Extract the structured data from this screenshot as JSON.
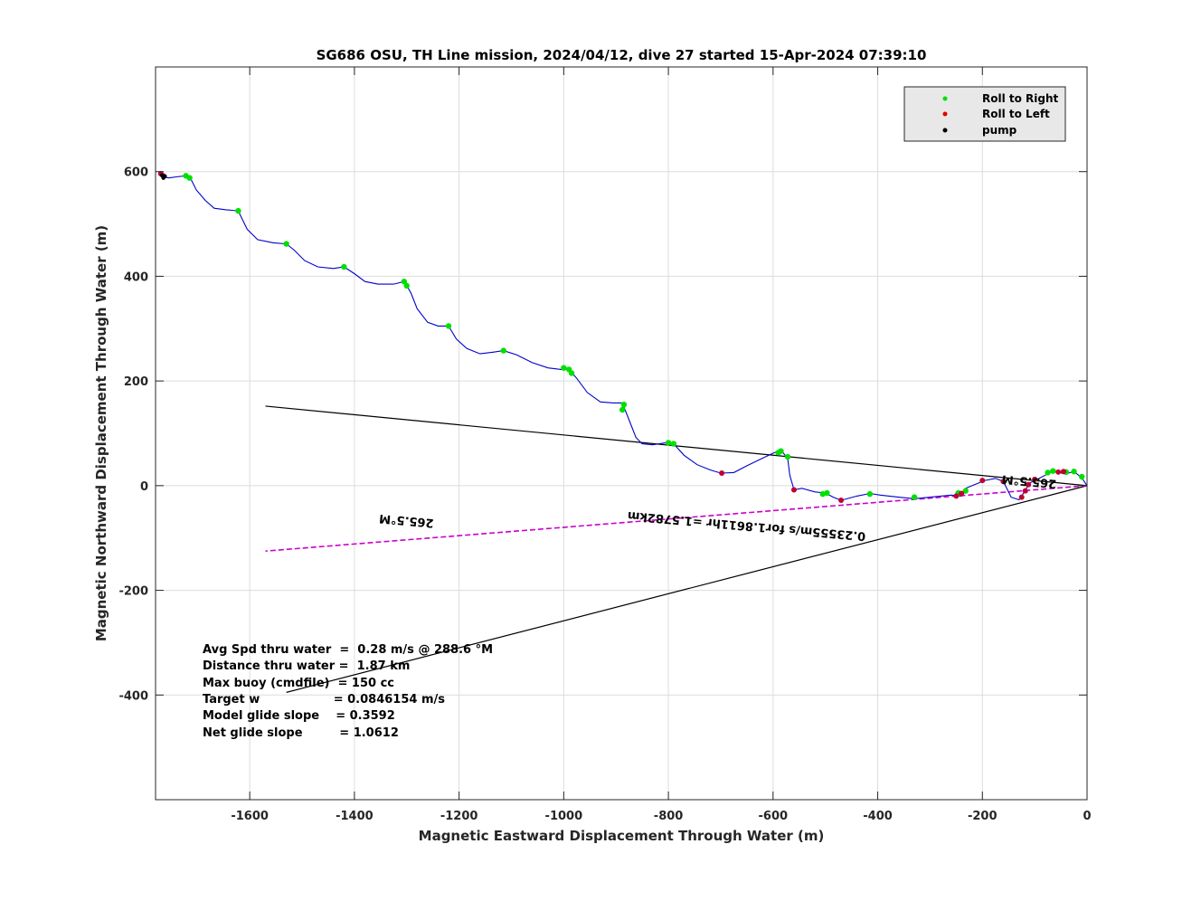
{
  "chart_data": {
    "type": "line",
    "title": "SG686 OSU, TH Line mission, 2024/04/12, dive 27 started 15-Apr-2024 07:39:10",
    "xlabel": "Magnetic Eastward Displacement Through Water (m)",
    "ylabel": "Magnetic Northward Displacement Through Water (m)",
    "xlim": [
      -1780,
      0
    ],
    "ylim": [
      -600,
      800
    ],
    "xticks": [
      -1600,
      -1400,
      -1200,
      -1000,
      -800,
      -600,
      -400,
      -200,
      0
    ],
    "yticks": [
      -400,
      -200,
      0,
      200,
      400,
      600
    ],
    "grid": true,
    "legend": {
      "placement": "top-right",
      "entries": [
        {
          "label": "Roll to Right",
          "color": "#00e000"
        },
        {
          "label": "Roll to Left",
          "color": "#e00000"
        },
        {
          "label": "pump",
          "color": "#000000"
        }
      ]
    },
    "track": {
      "color": "#0000cc",
      "points": [
        [
          0,
          0
        ],
        [
          -10,
          15
        ],
        [
          -25,
          27
        ],
        [
          -42,
          22
        ],
        [
          -55,
          26
        ],
        [
          -65,
          28
        ],
        [
          -80,
          20
        ],
        [
          -95,
          12
        ],
        [
          -110,
          5
        ],
        [
          -120,
          -12
        ],
        [
          -130,
          -27
        ],
        [
          -145,
          -22
        ],
        [
          -160,
          8
        ],
        [
          -175,
          14
        ],
        [
          -195,
          10
        ],
        [
          -215,
          2
        ],
        [
          -232,
          -5
        ],
        [
          -240,
          -20
        ],
        [
          -260,
          -18
        ],
        [
          -300,
          -22
        ],
        [
          -330,
          -25
        ],
        [
          -360,
          -22
        ],
        [
          -395,
          -18
        ],
        [
          -415,
          -15
        ],
        [
          -440,
          -20
        ],
        [
          -470,
          -28
        ],
        [
          -485,
          -22
        ],
        [
          -500,
          -14
        ],
        [
          -520,
          -12
        ],
        [
          -545,
          -5
        ],
        [
          -560,
          -8
        ],
        [
          -568,
          20
        ],
        [
          -572,
          52
        ],
        [
          -585,
          68
        ],
        [
          -600,
          62
        ],
        [
          -625,
          50
        ],
        [
          -650,
          38
        ],
        [
          -675,
          25
        ],
        [
          -700,
          24
        ],
        [
          -720,
          30
        ],
        [
          -745,
          40
        ],
        [
          -770,
          58
        ],
        [
          -790,
          80
        ],
        [
          -805,
          82
        ],
        [
          -830,
          78
        ],
        [
          -850,
          80
        ],
        [
          -862,
          92
        ],
        [
          -875,
          125
        ],
        [
          -888,
          158
        ],
        [
          -905,
          158
        ],
        [
          -930,
          160
        ],
        [
          -955,
          178
        ],
        [
          -975,
          205
        ],
        [
          -990,
          222
        ],
        [
          -1005,
          222
        ],
        [
          -1030,
          225
        ],
        [
          -1060,
          235
        ],
        [
          -1090,
          250
        ],
        [
          -1115,
          258
        ],
        [
          -1135,
          255
        ],
        [
          -1160,
          252
        ],
        [
          -1185,
          262
        ],
        [
          -1205,
          280
        ],
        [
          -1220,
          305
        ],
        [
          -1240,
          305
        ],
        [
          -1260,
          312
        ],
        [
          -1280,
          338
        ],
        [
          -1292,
          368
        ],
        [
          -1300,
          382
        ],
        [
          -1305,
          390
        ],
        [
          -1325,
          385
        ],
        [
          -1355,
          385
        ],
        [
          -1380,
          390
        ],
        [
          -1400,
          405
        ],
        [
          -1420,
          418
        ],
        [
          -1440,
          415
        ],
        [
          -1470,
          418
        ],
        [
          -1495,
          430
        ],
        [
          -1515,
          450
        ],
        [
          -1530,
          462
        ],
        [
          -1555,
          464
        ],
        [
          -1585,
          470
        ],
        [
          -1605,
          490
        ],
        [
          -1622,
          525
        ],
        [
          -1645,
          527
        ],
        [
          -1668,
          530
        ],
        [
          -1685,
          545
        ],
        [
          -1702,
          565
        ],
        [
          -1712,
          585
        ],
        [
          -1722,
          592
        ],
        [
          -1740,
          590
        ],
        [
          -1755,
          588
        ],
        [
          -1765,
          590
        ]
      ]
    },
    "roll_right_points": [
      [
        -10,
        17
      ],
      [
        -25,
        27
      ],
      [
        -40,
        26
      ],
      [
        -65,
        28
      ],
      [
        -75,
        25
      ],
      [
        -232,
        -10
      ],
      [
        -246,
        -14
      ],
      [
        -330,
        -22
      ],
      [
        -415,
        -16
      ],
      [
        -497,
        -14
      ],
      [
        -505,
        -16
      ],
      [
        -572,
        55
      ],
      [
        -585,
        66
      ],
      [
        -590,
        63
      ],
      [
        -800,
        82
      ],
      [
        -790,
        80
      ],
      [
        -885,
        155
      ],
      [
        -888,
        145
      ],
      [
        -990,
        222
      ],
      [
        -985,
        215
      ],
      [
        -1000,
        225
      ],
      [
        -1115,
        258
      ],
      [
        -1220,
        305
      ],
      [
        -1300,
        382
      ],
      [
        -1305,
        390
      ],
      [
        -1420,
        418
      ],
      [
        -1530,
        462
      ],
      [
        -1622,
        525
      ],
      [
        -1722,
        592
      ],
      [
        -1715,
        588
      ]
    ],
    "roll_left_points": [
      [
        -45,
        27
      ],
      [
        -55,
        26
      ],
      [
        -100,
        12
      ],
      [
        -112,
        2
      ],
      [
        -118,
        -10
      ],
      [
        -125,
        -22
      ],
      [
        -160,
        8
      ],
      [
        -200,
        10
      ],
      [
        -240,
        -15
      ],
      [
        -250,
        -20
      ],
      [
        -470,
        -28
      ],
      [
        -560,
        -8
      ],
      [
        -698,
        24
      ],
      [
        -1765,
        592
      ],
      [
        -1770,
        596
      ]
    ],
    "pump_points": [
      [
        -1765,
        588
      ],
      [
        -1768,
        593
      ],
      [
        -1762,
        591
      ]
    ],
    "lines": [
      {
        "name": "black-upper-line",
        "color": "#000000",
        "from": [
          0,
          0
        ],
        "to": [
          -1570,
          152
        ]
      },
      {
        "name": "black-lower-line",
        "color": "#000000",
        "from": [
          0,
          0
        ],
        "to": [
          -1530,
          -395
        ]
      },
      {
        "name": "magenta-heading-line",
        "color": "#cc00cc",
        "from": [
          0,
          0
        ],
        "to": [
          -1570,
          -125
        ]
      }
    ],
    "annotations": [
      {
        "text": "265.5°M",
        "x": -110,
        "y": 15,
        "rotate": 185
      },
      {
        "text": "265.5°M",
        "x": -1300,
        "y": -60,
        "rotate": 185
      },
      {
        "text": "0.23555m/s for1.8611hr =1.5782km",
        "x": -650,
        "y": -70,
        "rotate": 185
      }
    ],
    "stats": [
      "Avg Spd thru water  =  0.28 m/s @ 288.6 °M",
      "Distance thru water =  1.87 km",
      "Max buoy (cmdfile)  = 150 cc",
      "Target w                  = 0.0846154 m/s",
      "Model glide slope    = 0.3592",
      "Net glide slope         = 1.0612"
    ]
  }
}
